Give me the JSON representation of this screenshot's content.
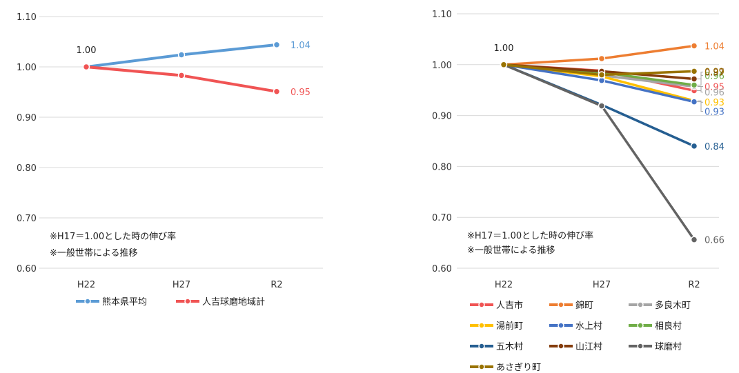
{
  "chart_data": [
    {
      "type": "line",
      "categories": [
        "H22",
        "H27",
        "R2"
      ],
      "ylim": [
        0.6,
        1.1
      ],
      "yticks": [
        "0.60",
        "0.70",
        "0.80",
        "0.90",
        "1.00",
        "1.10"
      ],
      "grid": true,
      "notes": [
        "※H17＝1.00とした時の伸び率",
        "※一般世帯による推移"
      ],
      "start_label": "1.00",
      "legend_position": "bottom",
      "series": [
        {
          "name": "熊本県平均",
          "values": [
            1.0,
            1.024,
            1.044
          ],
          "color": "#5b9bd5",
          "end_label": "1.04"
        },
        {
          "name": "人吉球磨地域計",
          "values": [
            1.0,
            0.983,
            0.951
          ],
          "color": "#f05454",
          "end_label": "0.95"
        }
      ]
    },
    {
      "type": "line",
      "categories": [
        "H22",
        "H27",
        "R2"
      ],
      "ylim": [
        0.6,
        1.1
      ],
      "yticks": [
        "0.60",
        "0.70",
        "0.80",
        "0.90",
        "1.00",
        "1.10"
      ],
      "grid": true,
      "notes": [
        "※H17＝1.00とした時の伸び率",
        "※一般世帯による推移"
      ],
      "start_label": "1.00",
      "legend_position": "bottom",
      "series": [
        {
          "name": "人吉市",
          "values": [
            1.0,
            0.988,
            0.949
          ],
          "color": "#f05454",
          "end_label": "0.95"
        },
        {
          "name": "錦町",
          "values": [
            1.0,
            1.012,
            1.037
          ],
          "color": "#ed7d31",
          "end_label": "1.04"
        },
        {
          "name": "多良木町",
          "values": [
            1.0,
            0.979,
            0.957
          ],
          "color": "#a5a5a5",
          "end_label": "0.96"
        },
        {
          "name": "湯前町",
          "values": [
            1.0,
            0.977,
            0.929
          ],
          "color": "#ffc000",
          "end_label": "0.93"
        },
        {
          "name": "水上村",
          "values": [
            1.0,
            0.969,
            0.927
          ],
          "color": "#4472c4",
          "end_label": "0.93"
        },
        {
          "name": "相良村",
          "values": [
            1.0,
            0.985,
            0.96
          ],
          "color": "#70ad47",
          "end_label": "0.96"
        },
        {
          "name": "五木村",
          "values": [
            1.0,
            0.921,
            0.84
          ],
          "color": "#255e91",
          "end_label": "0.84"
        },
        {
          "name": "山江村",
          "values": [
            1.0,
            0.987,
            0.972
          ],
          "color": "#843c0c",
          "end_label": "0.97"
        },
        {
          "name": "球磨村",
          "values": [
            1.0,
            0.919,
            0.656
          ],
          "color": "#636363",
          "end_label": "0.66"
        },
        {
          "name": "あさぎり町",
          "values": [
            1.0,
            0.98,
            0.987
          ],
          "color": "#997300",
          "end_label": "0.99"
        }
      ]
    }
  ]
}
